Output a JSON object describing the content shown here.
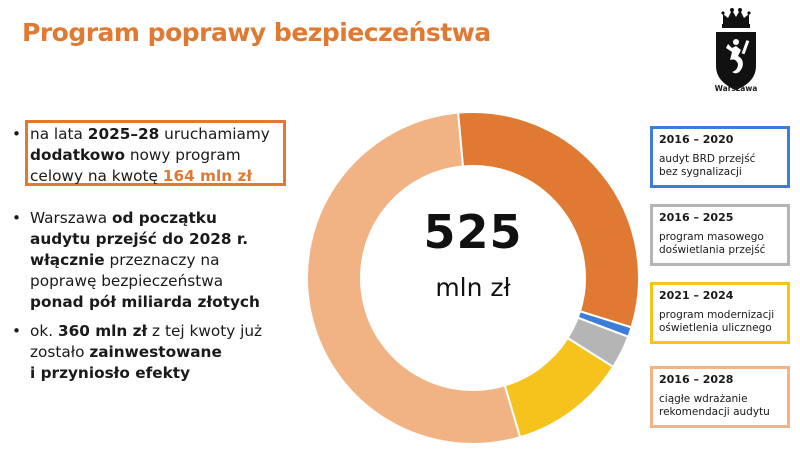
{
  "title": "Program poprawy bezpieczeństwa",
  "logo": {
    "caption": "Warszawa"
  },
  "bullets": [
    {
      "lines": [
        [
          {
            "t": "na lata "
          },
          {
            "t": "2025–28",
            "s": "b"
          },
          {
            "t": " uruchamiamy"
          }
        ],
        [
          {
            "t": "dodatkowo",
            "s": "b"
          },
          {
            "t": " nowy program"
          }
        ],
        [
          {
            "t": "celowy na kwotę "
          },
          {
            "t": "164 mln zł",
            "s": "o"
          }
        ]
      ]
    },
    {
      "lines": [
        [
          {
            "t": "Warszawa "
          },
          {
            "t": "od początku",
            "s": "b"
          }
        ],
        [
          {
            "t": "audytu przejść do 2028 r.",
            "s": "b"
          }
        ],
        [
          {
            "t": "włącznie",
            "s": "b"
          },
          {
            "t": " przeznaczy na"
          }
        ],
        [
          {
            "t": "poprawę  bezpieczeństwa"
          }
        ],
        [
          {
            "t": "ponad pół miliarda złotych",
            "s": "b"
          }
        ]
      ]
    },
    {
      "lines": [
        [
          {
            "t": "ok. "
          },
          {
            "t": "360 mln zł",
            "s": "b"
          },
          {
            "t": " z tej kwoty już"
          }
        ],
        [
          {
            "t": "zostało "
          },
          {
            "t": "zainwestowane",
            "s": "b"
          }
        ],
        [
          {
            "t": "i przyniosło efekty",
            "s": "b"
          }
        ]
      ]
    }
  ],
  "center": {
    "value": "525",
    "unit": "mln zł"
  },
  "legend": [
    {
      "years": "2016 – 2020",
      "desc": [
        "audyt BRD przejść",
        "bez sygnalizacji"
      ],
      "color": "#3b7dd8"
    },
    {
      "years": "2016 – 2025",
      "desc": [
        "program masowego",
        "doświetlania przejść"
      ],
      "color": "#b5b5b5"
    },
    {
      "years": "2021 – 2024",
      "desc": [
        "program modernizacji",
        "oświetlenia ulicznego"
      ],
      "color": "#f6c21c"
    },
    {
      "years": "2016 – 2028",
      "desc": [
        "ciągłe wdrażanie",
        "rekomendacji audytu"
      ],
      "color": "#f2b384"
    }
  ],
  "chart_data": {
    "type": "pie",
    "title": "",
    "total_label": "525 mln zł",
    "slices": [
      {
        "name": "",
        "value": 164,
        "color": "#e07a32"
      },
      {
        "name": "2016 – 2020",
        "value": 5,
        "color": "#3b7dd8"
      },
      {
        "name": "2016 – 2025",
        "value": 17,
        "color": "#b5b5b5"
      },
      {
        "name": "2021 – 2024",
        "value": 60,
        "color": "#f6c21c"
      },
      {
        "name": "2016 – 2028",
        "value": 279,
        "color": "#f2b384"
      }
    ]
  }
}
